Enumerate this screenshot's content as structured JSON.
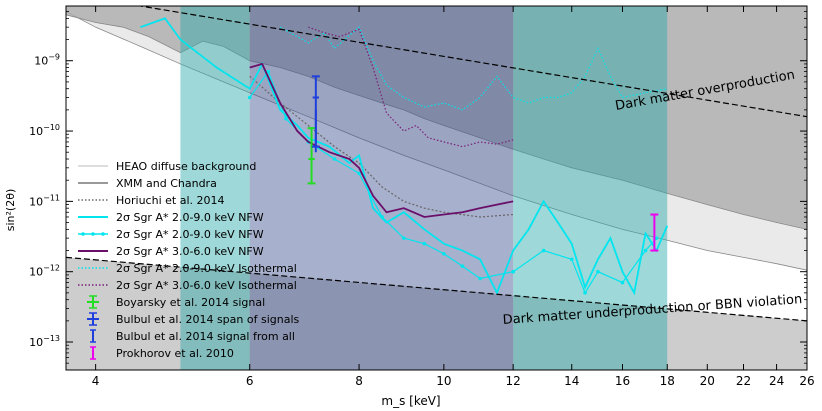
{
  "chart_data": {
    "type": "line",
    "xlabel": "m_s [keV]",
    "ylabel": "sin²(2θ)",
    "xscale": "log",
    "yscale": "log",
    "xlim": [
      3.7,
      26
    ],
    "ylim": [
      4e-14,
      6e-09
    ],
    "xticks": [
      {
        "v": 4,
        "label": "4"
      },
      {
        "v": 6,
        "label": "6"
      },
      {
        "v": 8,
        "label": "8"
      },
      {
        "v": 10,
        "label": "10"
      },
      {
        "v": 12,
        "label": "12"
      },
      {
        "v": 14,
        "label": "14"
      },
      {
        "v": 16,
        "label": "16"
      },
      {
        "v": 18,
        "label": "18"
      },
      {
        "v": 20,
        "label": "20"
      },
      {
        "v": 22,
        "label": "22"
      },
      {
        "v": 24,
        "label": "24"
      },
      {
        "v": 26,
        "label": "26"
      }
    ],
    "yticks": [
      {
        "v": 1e-13,
        "label": "10^-13",
        "base": "10",
        "exp": "−13"
      },
      {
        "v": 1e-12,
        "label": "10^-12",
        "base": "10",
        "exp": "−12"
      },
      {
        "v": 1e-11,
        "label": "10^-11",
        "base": "10",
        "exp": "−11"
      },
      {
        "v": 1e-10,
        "label": "10^-10",
        "base": "10",
        "exp": "−10"
      },
      {
        "v": 1e-09,
        "label": "10^-9",
        "base": "10",
        "exp": "−9"
      }
    ],
    "annotations": [
      {
        "text": "Dark matter overproduction",
        "x": 10.8,
        "y": 6e-10
      },
      {
        "text": "Dark matter underproduction or BBN violation",
        "x": 10.8,
        "y": 1e-13
      }
    ],
    "series": [
      {
        "name": "HEAO diffuse background",
        "style": "fill-light",
        "color": "#d9d9d9",
        "x": [
          3.7,
          4.0,
          4.5,
          5.0,
          5.5,
          6.0,
          7.0,
          8.0,
          9.0,
          10.0,
          12.0,
          14.0,
          16.0,
          18.0,
          20.0,
          22.0,
          24.0,
          26.0
        ],
        "y": [
          5e-09,
          3e-09,
          1.6e-09,
          9e-10,
          5.5e-10,
          3.5e-10,
          1.6e-10,
          8e-11,
          4.5e-11,
          2.8e-11,
          1.2e-11,
          6.5e-12,
          4e-12,
          2.8e-12,
          2e-12,
          1.6e-12,
          1.3e-12,
          1.05e-12
        ]
      },
      {
        "name": "XMM and Chandra",
        "style": "fill-gray",
        "color": "#a8a8a8",
        "x": [
          3.7,
          4.0,
          4.3,
          4.6,
          5.0,
          5.3,
          5.6,
          6.0,
          6.5,
          7.0,
          7.5,
          8.0,
          8.5,
          9.0,
          9.5,
          10.0,
          11.0,
          12.0,
          13.0,
          14.0,
          16.0,
          18.0,
          20.0,
          22.0,
          24.0,
          26.0
        ],
        "y": [
          4.5e-09,
          3.5e-09,
          3e-09,
          2.2e-09,
          1.3e-09,
          1.9e-09,
          1.6e-09,
          1e-09,
          8e-10,
          6e-10,
          4.2e-10,
          3.2e-10,
          2.5e-10,
          2e-10,
          1.5e-10,
          1.2e-10,
          8e-11,
          5.5e-11,
          4e-11,
          3e-11,
          2e-11,
          1.3e-11,
          9e-12,
          6.5e-12,
          5e-12,
          4e-12
        ]
      },
      {
        "name": "Horiuchi et al. 2014",
        "style": "dotted-region",
        "color": "#666666",
        "x": [
          6.0,
          6.5,
          7.0,
          7.5,
          8.0,
          8.5,
          9.0,
          9.5,
          10.0,
          11.0,
          12.0
        ],
        "y": [
          6e-10,
          2.5e-10,
          1.2e-10,
          6e-11,
          3.5e-11,
          1.6e-11,
          1e-11,
          8e-12,
          7e-12,
          6e-12,
          6.5e-12
        ]
      },
      {
        "name": "2σ Sgr A* 2.0-9.0 keV NFW",
        "style": "line",
        "color": "#00e5ee",
        "x": [
          4.5,
          4.8,
          5.0,
          5.5,
          6.0,
          6.2,
          6.5,
          6.8,
          7.0,
          7.4,
          7.8,
          8.0,
          8.3,
          8.6,
          9.0,
          9.5,
          10.0,
          10.5,
          11.0,
          11.5,
          12.0,
          12.5,
          13.0,
          13.5,
          14.0,
          14.5,
          15.0,
          15.5,
          16.0,
          16.5,
          17.0,
          17.5,
          18.0
        ],
        "y": [
          3e-09,
          4e-09,
          2e-09,
          8e-10,
          4e-10,
          9e-10,
          2e-10,
          1.2e-10,
          8e-11,
          6e-11,
          3.5e-11,
          4.5e-11,
          8e-12,
          5e-12,
          7e-12,
          4e-12,
          2.5e-12,
          2e-12,
          1.5e-12,
          5e-13,
          2e-12,
          4e-12,
          1e-11,
          5e-12,
          2.5e-12,
          6e-13,
          1.5e-12,
          3e-12,
          1e-12,
          5e-13,
          3.5e-12,
          2e-12,
          4.5e-12
        ]
      },
      {
        "name": "2σ Sgr A* 2.0-9.0 keV NFW",
        "style": "line-marker",
        "color": "#00e5ee",
        "x": [
          6.0,
          6.3,
          6.6,
          7.0,
          7.5,
          8.0,
          8.5,
          9.0,
          9.5,
          10.0,
          10.5,
          11.0,
          12.0,
          13.0,
          14.0,
          14.5,
          15.0,
          16.0,
          17.0,
          17.5
        ],
        "y": [
          3e-10,
          7e-10,
          1.5e-10,
          7e-11,
          4e-11,
          2.5e-11,
          6e-12,
          3e-12,
          2.5e-12,
          1.8e-12,
          1.2e-12,
          8e-13,
          1e-12,
          2e-12,
          1.5e-12,
          5e-13,
          1e-12,
          7e-13,
          2e-12,
          3e-12
        ]
      },
      {
        "name": "2σ Sgr A* 3.0-6.0 keV NFW",
        "style": "line",
        "color": "#6a0f6a",
        "x": [
          6.0,
          6.2,
          6.5,
          6.8,
          7.0,
          7.4,
          7.8,
          8.0,
          8.3,
          8.6,
          9.0,
          9.5,
          10.0,
          10.5,
          11.0,
          11.5,
          12.0
        ],
        "y": [
          8e-10,
          9e-10,
          2.5e-10,
          1e-10,
          7e-11,
          5e-11,
          4e-11,
          3e-11,
          1.2e-11,
          7e-12,
          8e-12,
          6e-12,
          6.5e-12,
          7e-12,
          8e-12,
          9e-12,
          1e-11
        ]
      },
      {
        "name": "2σ Sgr A* 2.0-9.0 keV Isothermal",
        "style": "dotted",
        "color": "#00e5ee",
        "x": [
          6.5,
          7.0,
          7.3,
          7.5,
          7.7,
          8.0,
          8.3,
          8.6,
          9.0,
          9.5,
          10.0,
          10.5,
          11.0,
          11.5,
          12.0,
          12.5,
          13.0,
          13.5,
          14.0,
          14.5,
          15.0,
          15.5,
          16.0,
          17.0,
          18.0
        ],
        "y": [
          3e-09,
          1.8e-09,
          2.5e-09,
          1.5e-09,
          2e-09,
          3e-09,
          1e-09,
          4.5e-10,
          3e-10,
          2.2e-10,
          2.5e-10,
          2e-10,
          3e-10,
          6e-10,
          3e-10,
          2.5e-10,
          3e-10,
          3e-10,
          3.5e-10,
          6e-10,
          1.5e-09,
          6e-10,
          3e-10,
          3.5e-10,
          4e-10
        ]
      },
      {
        "name": "2σ Sgr A* 3.0-6.0 keV Isothermal",
        "style": "dotted",
        "color": "#7a1f7a",
        "x": [
          7.0,
          7.3,
          7.6,
          8.0,
          8.3,
          8.6,
          9.0,
          9.3,
          9.6,
          10.0,
          10.5,
          11.0,
          11.5,
          12.0
        ],
        "y": [
          3e-09,
          2.5e-09,
          2.2e-09,
          2.8e-09,
          8e-10,
          1.8e-10,
          1e-10,
          1.2e-10,
          8e-11,
          7e-11,
          6e-11,
          7e-11,
          6.5e-11,
          7.5e-11
        ]
      }
    ],
    "errorbars": [
      {
        "name": "Boyarsky et al. 2014 signal",
        "color": "#22dd22",
        "x": 7.06,
        "xerr": 0.06,
        "y": 4e-11,
        "ylo": 1.8e-11,
        "yhi": 1.1e-10,
        "caps": true
      },
      {
        "name": "Bulbul et al. 2014 span of signals",
        "color": "#1f3fdd",
        "x": 7.14,
        "xerr": 0.06,
        "y": 3e-10,
        "ylo": 6e-11,
        "yhi": 6e-10,
        "caps": true
      },
      {
        "name": "Bulbul et al. 2014 signal from all",
        "color": "#1f3fdd",
        "x": 7.14,
        "xerr": 0,
        "y": 1.5e-10,
        "ylo": 5e-11,
        "yhi": 2e-10,
        "caps": false
      },
      {
        "name": "Prokhorov et al. 2010",
        "color": "#ee00ee",
        "x": 17.4,
        "xerr": 0,
        "y": 3.5e-12,
        "ylo": 2e-12,
        "yhi": 6.5e-12,
        "caps": true
      }
    ],
    "bands": [
      {
        "x0": 5.0,
        "x1": 6.0,
        "color": "#2aa8a8"
      },
      {
        "x0": 6.0,
        "x1": 12.0,
        "color": "#3b4f8f"
      },
      {
        "x0": 12.0,
        "x1": 18.0,
        "color": "#2aa8a8"
      }
    ],
    "legend_position": "center-left",
    "legend": [
      {
        "label": "HEAO diffuse background",
        "type": "line",
        "color": "#dddddd"
      },
      {
        "label": "XMM and Chandra",
        "type": "line",
        "color": "#999999"
      },
      {
        "label": "Horiuchi et al. 2014",
        "type": "dotted",
        "color": "#666666"
      },
      {
        "label": "2σ Sgr A* 2.0-9.0 keV NFW",
        "type": "line",
        "color": "#00e5ee"
      },
      {
        "label": "2σ Sgr A* 2.0-9.0 keV NFW",
        "type": "line-marker",
        "color": "#00e5ee"
      },
      {
        "label": "2σ Sgr A* 3.0-6.0 keV NFW",
        "type": "line",
        "color": "#6a0f6a"
      },
      {
        "label": "2σ Sgr A* 2.0-9.0 keV Isothermal",
        "type": "dotted",
        "color": "#00e5ee"
      },
      {
        "label": "2σ Sgr A* 3.0-6.0 keV Isothermal",
        "type": "dotted",
        "color": "#7a1f7a"
      },
      {
        "label": "Boyarsky et al. 2014 signal",
        "type": "cross",
        "color": "#22dd22"
      },
      {
        "label": "Bulbul et al. 2014 span of signals",
        "type": "cross",
        "color": "#1f3fdd"
      },
      {
        "label": "Bulbul et al. 2014 signal from all",
        "type": "ibar",
        "color": "#1f3fdd"
      },
      {
        "label": "Prokhorov et al. 2010",
        "type": "ibar",
        "color": "#ee00ee"
      }
    ]
  }
}
